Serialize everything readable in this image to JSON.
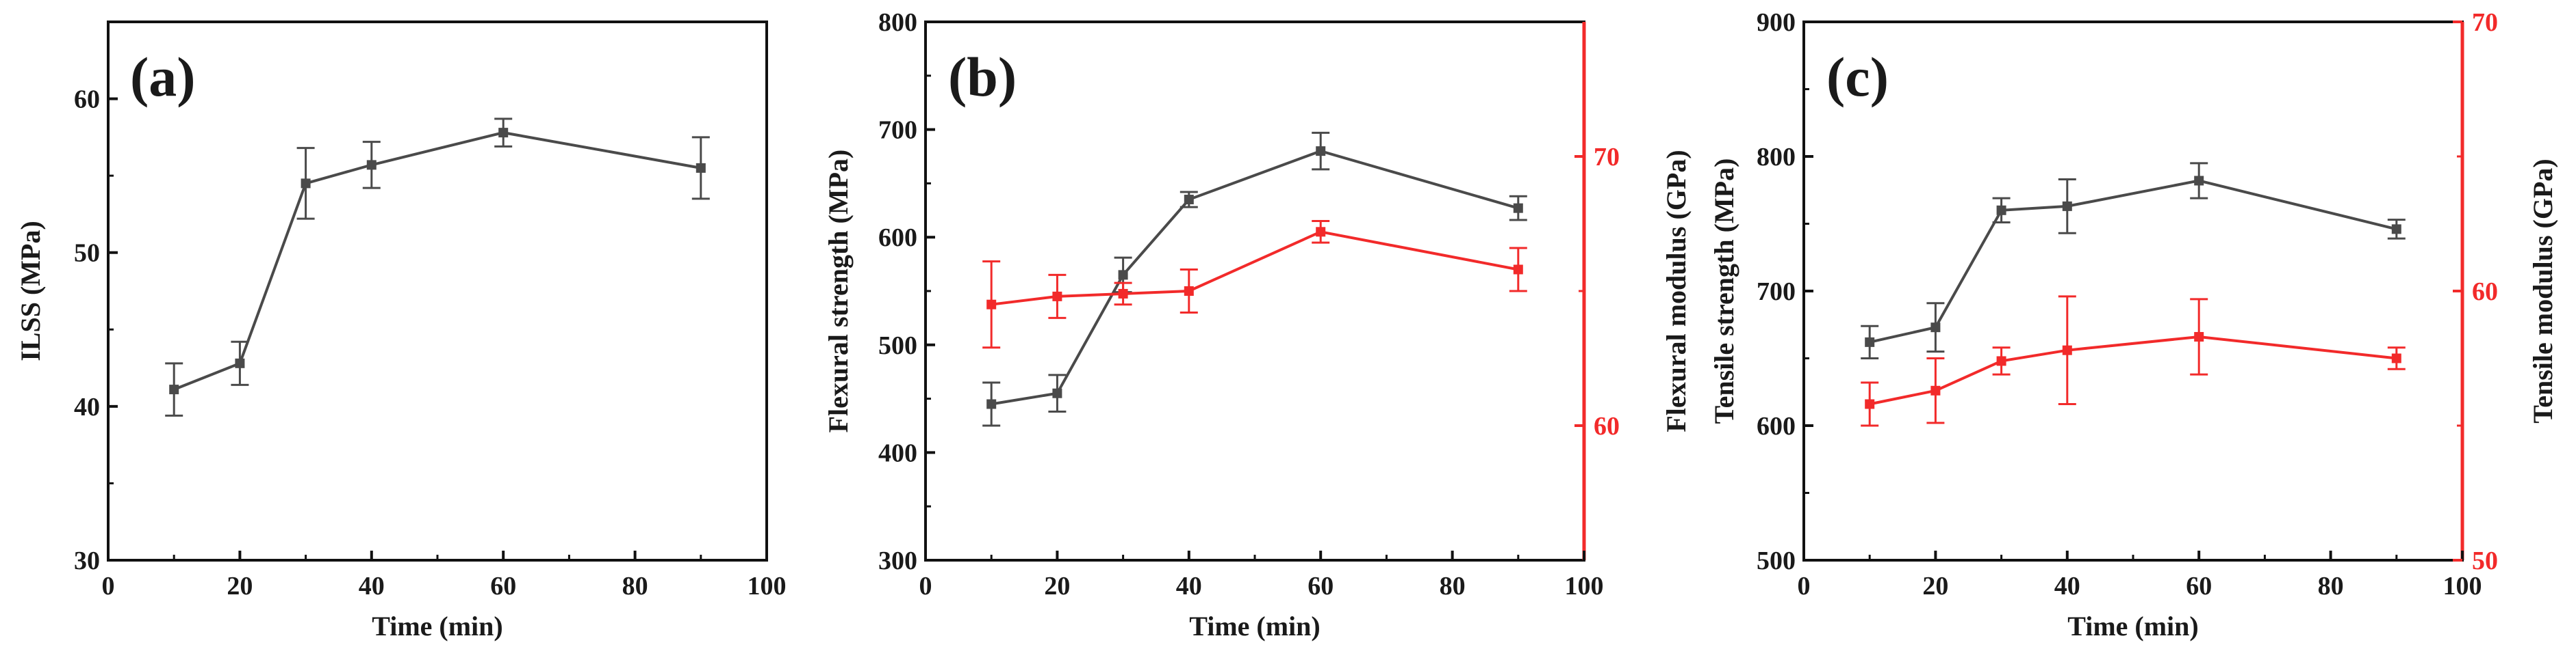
{
  "colors": {
    "black_series": "#4a4a4a",
    "red_series": "#f22a2a",
    "axis": "#111111"
  },
  "chart_data": [
    {
      "type": "line",
      "panel_label": "(a)",
      "xlabel": "Time (min)",
      "ylabel": "ILSS (MPa)",
      "xlim": [
        0,
        100
      ],
      "xticks": [
        0,
        20,
        40,
        60,
        80,
        100
      ],
      "ylim": [
        30,
        65
      ],
      "yticks": [
        30,
        40,
        50,
        60
      ],
      "grid": false,
      "series": [
        {
          "axis": "left",
          "color": "#4a4a4a",
          "marker": "square",
          "x": [
            10,
            20,
            30,
            40,
            60,
            90
          ],
          "values": [
            41.1,
            42.8,
            54.5,
            55.7,
            57.8,
            55.5
          ],
          "errors": [
            1.7,
            1.4,
            2.3,
            1.5,
            0.9,
            2.0
          ]
        }
      ]
    },
    {
      "type": "line",
      "panel_label": "(b)",
      "xlabel": "Time (min)",
      "ylabel": "Flexural strength (MPa)",
      "y2label": "Flexural modulus (GPa)",
      "xlim": [
        0,
        100
      ],
      "xticks": [
        0,
        20,
        40,
        60,
        80,
        100
      ],
      "ylim": [
        300,
        800
      ],
      "yticks": [
        300,
        400,
        500,
        600,
        700,
        800
      ],
      "y2lim": [
        55,
        75
      ],
      "y2ticks": [
        60,
        70
      ],
      "grid": false,
      "series": [
        {
          "axis": "left",
          "color": "#4a4a4a",
          "marker": "square",
          "x": [
            10,
            20,
            30,
            40,
            60,
            90
          ],
          "values": [
            445,
            455,
            565,
            635,
            680,
            627
          ],
          "errors": [
            20,
            17,
            16,
            7,
            17,
            11
          ]
        },
        {
          "axis": "right",
          "color": "#f22a2a",
          "marker": "square",
          "x": [
            10,
            20,
            30,
            40,
            60,
            90
          ],
          "values": [
            64.5,
            64.8,
            64.9,
            65.0,
            67.2,
            65.8
          ],
          "errors": [
            1.6,
            0.8,
            0.4,
            0.8,
            0.4,
            0.8
          ]
        }
      ]
    },
    {
      "type": "line",
      "panel_label": "(c)",
      "xlabel": "Time (min)",
      "ylabel": "Tensile strength (MPa)",
      "y2label": "Tensile modulus (GPa)",
      "xlim": [
        0,
        100
      ],
      "xticks": [
        0,
        20,
        40,
        60,
        80,
        100
      ],
      "ylim": [
        500,
        900
      ],
      "yticks": [
        500,
        600,
        700,
        800,
        900
      ],
      "y2lim": [
        50,
        70
      ],
      "y2ticks": [
        50,
        60,
        70
      ],
      "grid": false,
      "series": [
        {
          "axis": "left",
          "color": "#4a4a4a",
          "marker": "square",
          "x": [
            10,
            20,
            30,
            40,
            60,
            90
          ],
          "values": [
            662,
            673,
            760,
            763,
            782,
            746
          ],
          "errors": [
            12,
            18,
            9,
            20,
            13,
            7
          ]
        },
        {
          "axis": "right",
          "color": "#f22a2a",
          "marker": "square",
          "x": [
            10,
            20,
            30,
            40,
            60,
            90
          ],
          "values": [
            55.8,
            56.3,
            57.4,
            57.8,
            58.3,
            57.5
          ],
          "errors": [
            0.8,
            1.2,
            0.5,
            2.0,
            1.4,
            0.4
          ]
        }
      ]
    }
  ]
}
